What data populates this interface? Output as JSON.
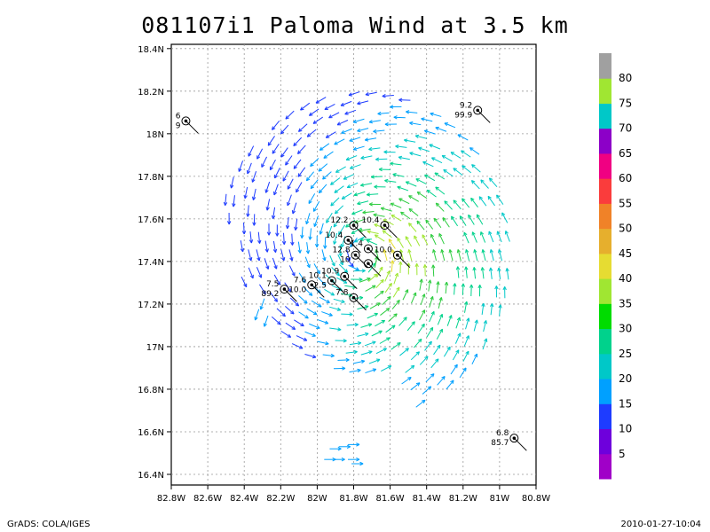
{
  "title": "081107i1 Paloma Wind at 3.5 km",
  "footer": {
    "left": "GrADS: COLA/IGES",
    "right": "2010-01-27-10:04"
  },
  "chart_data": {
    "type": "vector-map",
    "title": "081107i1 Paloma Wind at 3.5 km",
    "grid": true,
    "x_ticks": [
      "82.8W",
      "82.6W",
      "82.4W",
      "82.2W",
      "82W",
      "81.8W",
      "81.6W",
      "81.4W",
      "81.2W",
      "81W",
      "80.8W"
    ],
    "y_ticks": [
      "16.4N",
      "16.6N",
      "16.8N",
      "17N",
      "17.2N",
      "17.4N",
      "17.6N",
      "17.8N",
      "18N",
      "18.2N",
      "18.4N"
    ],
    "xlim": [
      -82.8,
      -80.8
    ],
    "ylim": [
      16.35,
      18.42
    ],
    "center": {
      "lon": -81.75,
      "lat": 17.43
    },
    "colorbar": {
      "labels": [
        "5",
        "10",
        "15",
        "20",
        "25",
        "30",
        "35",
        "40",
        "45",
        "50",
        "55",
        "60",
        "65",
        "70",
        "75",
        "80"
      ],
      "colors": [
        "#a000c8",
        "#6e00dc",
        "#1e3cff",
        "#00a0ff",
        "#00c8c8",
        "#00d28c",
        "#00dc00",
        "#a0e632",
        "#e6dc32",
        "#e6af2d",
        "#f08228",
        "#fa3c3c",
        "#f00082",
        "#8c00c8",
        "#00c8c8",
        "#a0e632",
        "#a0a0a0"
      ]
    },
    "stations": [
      {
        "lon": -82.72,
        "lat": 18.06,
        "labels": [
          "6",
          "9"
        ]
      },
      {
        "lon": -81.12,
        "lat": 18.11,
        "labels": [
          "9.2",
          "99.9"
        ]
      },
      {
        "lon": -80.92,
        "lat": 16.57,
        "labels": [
          "6.8",
          "85.7"
        ]
      },
      {
        "lon": -82.18,
        "lat": 17.27,
        "labels": [
          "7.5",
          "89.2"
        ]
      },
      {
        "lon": -82.03,
        "lat": 17.29,
        "labels": [
          "7.6",
          "10.0"
        ]
      },
      {
        "lon": -81.92,
        "lat": 17.31,
        "labels": [
          "10.1",
          "2.5"
        ]
      },
      {
        "lon": -81.85,
        "lat": 17.33,
        "labels": [
          "10.9",
          ""
        ]
      },
      {
        "lon": -81.8,
        "lat": 17.23,
        "labels": [
          "7.8",
          ""
        ]
      },
      {
        "lon": -81.8,
        "lat": 17.57,
        "labels": [
          "12.2",
          ""
        ]
      },
      {
        "lon": -81.63,
        "lat": 17.57,
        "labels": [
          "10.4",
          ""
        ]
      },
      {
        "lon": -81.83,
        "lat": 17.5,
        "labels": [
          "10.4",
          ""
        ]
      },
      {
        "lon": -81.79,
        "lat": 17.43,
        "labels": [
          "12.8",
          "10"
        ]
      },
      {
        "lon": -81.72,
        "lat": 17.46,
        "labels": [
          "1.4",
          ""
        ]
      },
      {
        "lon": -81.72,
        "lat": 17.39,
        "labels": [
          "",
          ""
        ]
      },
      {
        "lon": -81.56,
        "lat": 17.43,
        "labels": [
          "10.0",
          ""
        ]
      }
    ]
  }
}
